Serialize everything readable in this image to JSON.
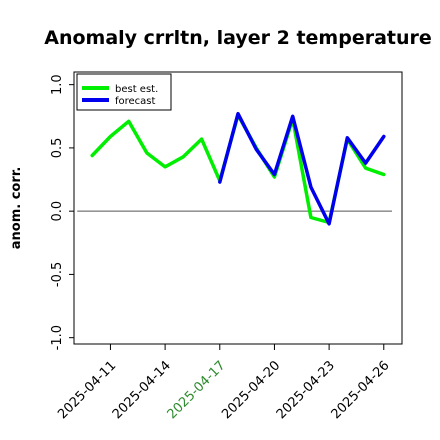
{
  "chart_data": {
    "type": "line",
    "title": "Anomaly crrltn, layer 2 temperature",
    "ylabel": "anom. corr.",
    "xlabel": "",
    "ylim": [
      -1.05,
      1.1
    ],
    "xlim": [
      "2025-04-09",
      "2025-04-27"
    ],
    "yticks": [
      "-1.0",
      "-0.5",
      "0.0",
      "0.5",
      "1.0"
    ],
    "yticks_values": [
      -1.0,
      -0.5,
      0.0,
      0.5,
      1.0
    ],
    "xticks": [
      "2025-04-11",
      "2025-04-14",
      "2025-04-17",
      "2025-04-20",
      "2025-04-23",
      "2025-04-26"
    ],
    "highlight_tick": "2025-04-17",
    "highlight_color": "#2e8b2e",
    "reference_line": 0.0,
    "legend_position": "top-left",
    "grid": false,
    "x": [
      "2025-04-10",
      "2025-04-11",
      "2025-04-12",
      "2025-04-13",
      "2025-04-14",
      "2025-04-15",
      "2025-04-16",
      "2025-04-17",
      "2025-04-18",
      "2025-04-19",
      "2025-04-20",
      "2025-04-21",
      "2025-04-22",
      "2025-04-23",
      "2025-04-24",
      "2025-04-25",
      "2025-04-26"
    ],
    "series": [
      {
        "name": "best est.",
        "color": "#00ee00",
        "values": [
          0.44,
          0.59,
          0.71,
          0.46,
          0.35,
          0.43,
          0.57,
          0.24,
          0.76,
          0.5,
          0.27,
          0.73,
          -0.05,
          -0.09,
          0.57,
          0.34,
          0.29
        ]
      },
      {
        "name": "forecast",
        "color": "#0000ee",
        "values": [
          null,
          null,
          null,
          null,
          null,
          null,
          null,
          0.23,
          0.77,
          0.49,
          0.29,
          0.75,
          0.19,
          -0.1,
          0.58,
          0.38,
          0.59
        ]
      }
    ]
  }
}
